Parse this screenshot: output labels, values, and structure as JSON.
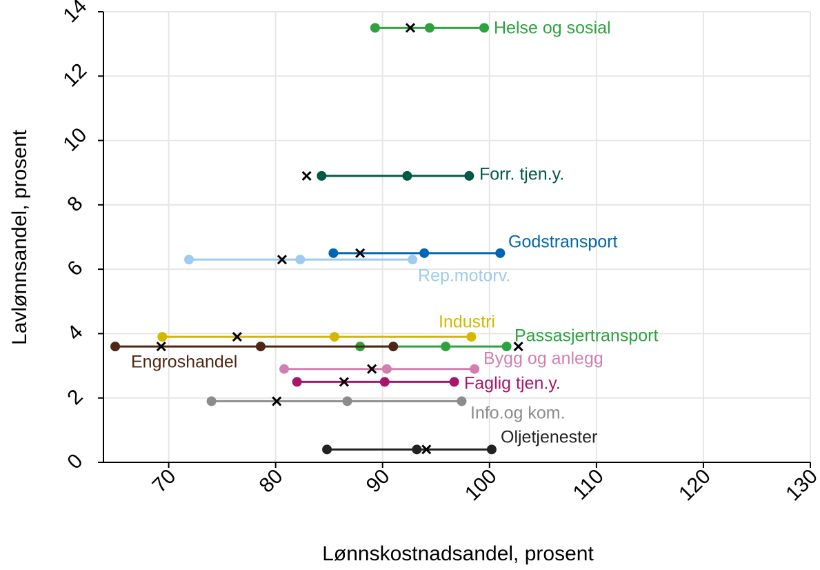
{
  "chart_data": {
    "type": "dumbbell",
    "xlabel": "Lønnskostnadsandel, prosent",
    "ylabel": "Lavlønnsandel, prosent",
    "xlim": [
      63.9,
      130
    ],
    "ylim": [
      0,
      14
    ],
    "xticks": [
      70,
      80,
      90,
      100,
      110,
      120,
      130
    ],
    "yticks": [
      0,
      2,
      4,
      6,
      8,
      10,
      12,
      14
    ],
    "grid": true,
    "series": [
      {
        "name": "Helse og sosial",
        "color": "#2ca33f",
        "y": 13.5,
        "x": [
          89.3,
          94.4,
          99.5
        ],
        "marker_x": 92.6
      },
      {
        "name": "Forr. tjen.y.",
        "color": "#005a46",
        "y": 8.9,
        "x": [
          84.3,
          92.3,
          98.1
        ],
        "marker_x": 82.9
      },
      {
        "name": "Godstransport",
        "color": "#0066b3",
        "y": 6.5,
        "x": [
          85.4,
          93.9,
          101.0
        ],
        "marker_x": 87.9
      },
      {
        "name": "Rep.motorv.",
        "color": "#9ecbee",
        "y": 6.3,
        "x": [
          71.9,
          82.3,
          92.8
        ],
        "marker_x": 80.6
      },
      {
        "name": "Industri",
        "color": "#d4b800",
        "y": 3.9,
        "x": [
          69.4,
          85.5,
          98.3
        ],
        "marker_x": 76.4
      },
      {
        "name": "Passasjertransport",
        "color": "#2ca33f",
        "y": 3.6,
        "x": [
          87.9,
          95.9,
          101.6
        ],
        "marker_x": 102.7
      },
      {
        "name": "Engroshandel",
        "color": "#4d2614",
        "y": 3.6,
        "x": [
          65.0,
          78.6,
          91.0
        ],
        "marker_x": 69.3
      },
      {
        "name": "Bygg og anlegg",
        "color": "#d17fb1",
        "y": 2.9,
        "x": [
          80.8,
          90.4,
          98.6
        ],
        "marker_x": 89.0
      },
      {
        "name": "Faglig tjen.y.",
        "color": "#a7166a",
        "y": 2.5,
        "x": [
          82.0,
          90.2,
          96.7
        ],
        "marker_x": 86.4
      },
      {
        "name": "Info.og kom.",
        "color": "#8c8c8c",
        "y": 1.9,
        "x": [
          74.0,
          86.7,
          97.4
        ],
        "marker_x": 80.1
      },
      {
        "name": "Oljetjenester",
        "color": "#222222",
        "y": 0.4,
        "x": [
          84.8,
          93.2,
          100.2
        ],
        "marker_x": 94.1
      }
    ]
  }
}
